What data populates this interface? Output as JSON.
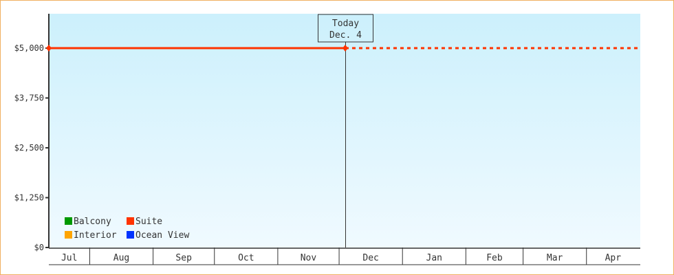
{
  "chart_data": {
    "type": "line",
    "title": "",
    "xlabel": "",
    "ylabel": "",
    "x_range": [
      "2024-07-12",
      "2025-04-27"
    ],
    "ylim": [
      0,
      5862
    ],
    "y_ticks": [
      0,
      1250,
      2500,
      3750,
      5000
    ],
    "y_tick_labels": [
      "$0",
      "$1,250",
      "$2,500",
      "$3,750",
      "$5,000"
    ],
    "month_labels": [
      {
        "label": "Jul",
        "start": "2024-07-12"
      },
      {
        "label": "Aug",
        "start": "2024-08-01"
      },
      {
        "label": "Sep",
        "start": "2024-09-01"
      },
      {
        "label": "Oct",
        "start": "2024-10-01"
      },
      {
        "label": "Nov",
        "start": "2024-11-01"
      },
      {
        "label": "Dec",
        "start": "2024-12-01"
      },
      {
        "label": "Jan",
        "start": "2025-01-01"
      },
      {
        "label": "Feb",
        "start": "2025-02-01"
      },
      {
        "label": "Mar",
        "start": "2025-03-01"
      },
      {
        "label": "Apr",
        "start": "2025-04-01"
      }
    ],
    "x_end": "2025-04-27",
    "today": {
      "label_line1": "Today",
      "label_line2": "Dec. 4",
      "date": "2024-12-04"
    },
    "legend": {
      "placement": "bottom-left",
      "items": [
        {
          "name": "Balcony",
          "color": "#009900"
        },
        {
          "name": "Suite",
          "color": "#ff3300"
        },
        {
          "name": "Interior",
          "color": "#ffa500"
        },
        {
          "name": "Ocean View",
          "color": "#0033ff"
        }
      ]
    },
    "series": [
      {
        "name": "Suite",
        "color": "#ff3300",
        "points": [
          {
            "x": "2024-07-12",
            "y": 5000
          },
          {
            "x": "2024-12-04",
            "y": 5000
          }
        ],
        "projection_to": "2025-04-27"
      }
    ],
    "background_gradient": [
      "#ccf0fc",
      "#f0faff"
    ]
  }
}
